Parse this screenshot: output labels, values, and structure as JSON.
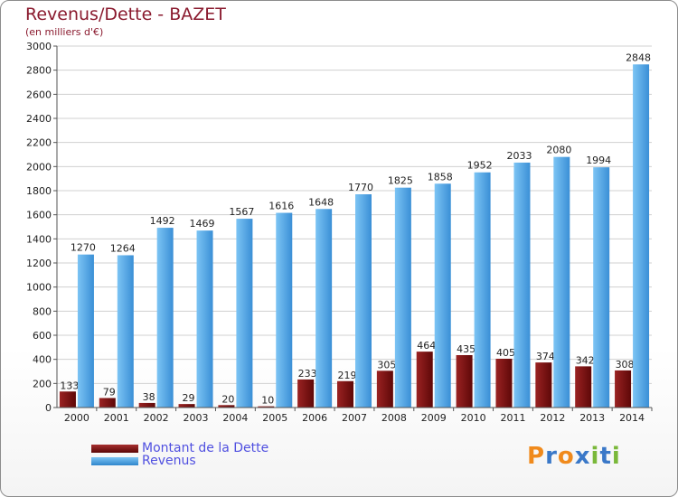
{
  "chart_data": {
    "type": "bar",
    "title": "Revenus/Dette - BAZET",
    "subtitle": "(en milliers d'€)",
    "categories": [
      "2000",
      "2001",
      "2002",
      "2003",
      "2004",
      "2005",
      "2006",
      "2007",
      "2008",
      "2009",
      "2010",
      "2011",
      "2012",
      "2013",
      "2014"
    ],
    "series": [
      {
        "name": "Montant de la Dette",
        "color": "#7a1010",
        "values": [
          133,
          79,
          38,
          29,
          20,
          10,
          233,
          219,
          305,
          464,
          435,
          405,
          374,
          342,
          308
        ]
      },
      {
        "name": "Revenus",
        "color": "#4aa3e6",
        "values": [
          1270,
          1264,
          1492,
          1469,
          1567,
          1616,
          1648,
          1770,
          1825,
          1858,
          1952,
          2033,
          2080,
          1994,
          2848
        ]
      }
    ],
    "ylim": [
      0,
      3000
    ],
    "yticks": [
      0,
      200,
      400,
      600,
      800,
      1000,
      1200,
      1400,
      1600,
      1800,
      2000,
      2200,
      2400,
      2600,
      2800,
      3000
    ],
    "grid": true,
    "legend_position": "bottom-left"
  },
  "logo": {
    "letters": [
      "P",
      "r",
      "o",
      "x",
      "i",
      "t",
      "i"
    ],
    "colors": [
      "#f08a1c",
      "#3a78c8",
      "#f08a1c",
      "#3a78c8",
      "#7ab83a",
      "#3a78c8",
      "#7ab83a"
    ]
  }
}
